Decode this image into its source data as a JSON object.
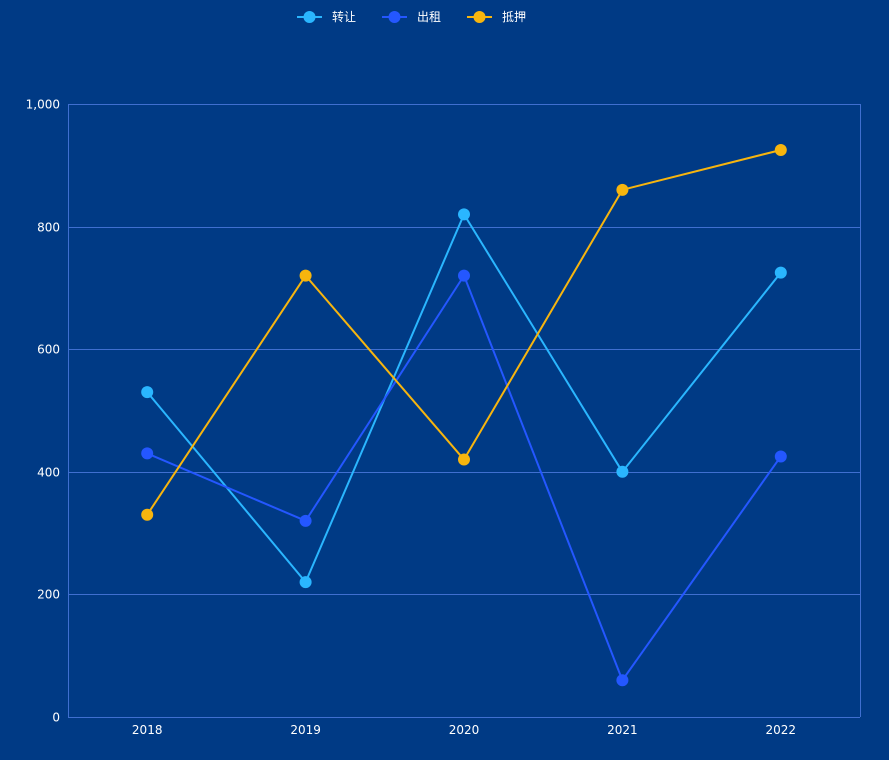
{
  "colors": {
    "background": "#003a85",
    "grid": "#3f6fd0",
    "axis_text": "#ffffff"
  },
  "chart_data": {
    "type": "line",
    "categories": [
      "2018",
      "2019",
      "2020",
      "2021",
      "2022"
    ],
    "series": [
      {
        "name": "转让",
        "color": "#2ab6ff",
        "values": [
          530,
          220,
          820,
          400,
          725
        ]
      },
      {
        "name": "出租",
        "color": "#2457ff",
        "values": [
          430,
          320,
          720,
          60,
          425
        ]
      },
      {
        "name": "抵押",
        "color": "#f7b50e",
        "values": [
          330,
          720,
          420,
          860,
          925
        ]
      }
    ],
    "ylim": [
      0,
      1000
    ],
    "yticks": [
      0,
      200,
      400,
      600,
      800,
      1000
    ],
    "ytick_labels": [
      "0",
      "200",
      "400",
      "600",
      "800",
      "1,000"
    ],
    "grid": true,
    "legend_position": "top-center",
    "marker": "circle"
  }
}
